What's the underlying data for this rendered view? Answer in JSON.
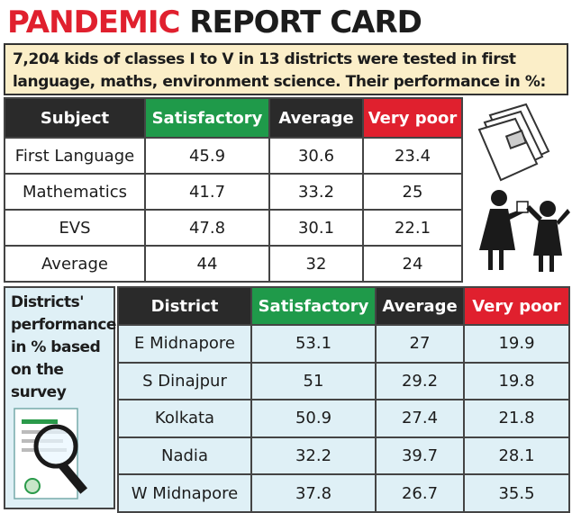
{
  "title": {
    "part1": "PANDEMIC",
    "part2": "REPORT CARD"
  },
  "intro": "7,204 kids of classes I to V in 13 districts were tested in first language, maths, environment science. Their performance in %:",
  "subject_table": {
    "headers": [
      "Subject",
      "Satisfactory",
      "Average",
      "Very poor"
    ],
    "rows": [
      [
        "First Language",
        "45.9",
        "30.6",
        "23.4"
      ],
      [
        "Mathematics",
        "41.7",
        "33.2",
        "25"
      ],
      [
        "EVS",
        "47.8",
        "30.1",
        "22.1"
      ],
      [
        "Average",
        "44",
        "32",
        "24"
      ]
    ]
  },
  "side_label": "Districts' performance in % based on the survey",
  "district_table": {
    "headers": [
      "District",
      "Satisfactory",
      "Average",
      "Very poor"
    ],
    "rows": [
      [
        "E Midnapore",
        "53.1",
        "27",
        "19.9"
      ],
      [
        "S Dinajpur",
        "51",
        "29.2",
        "19.8"
      ],
      [
        "Kolkata",
        "50.9",
        "27.4",
        "21.8"
      ],
      [
        "Nadia",
        "32.2",
        "39.7",
        "28.1"
      ],
      [
        "W Midnapore",
        "37.8",
        "26.7",
        "35.5"
      ]
    ]
  },
  "colors": {
    "accent_red": "#e0202e",
    "accent_green": "#1f9a4a",
    "header_dark": "#2a2a2a",
    "intro_bg": "#fbeec8",
    "district_bg": "#dff0f6"
  }
}
